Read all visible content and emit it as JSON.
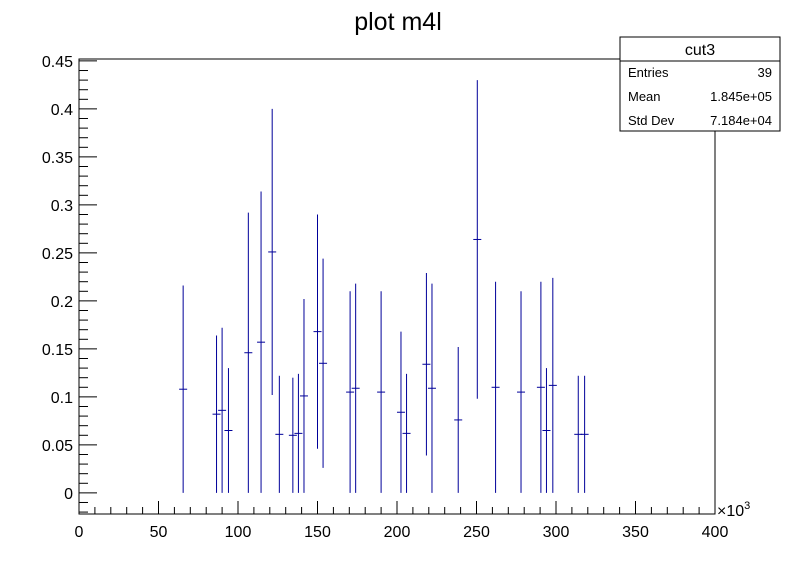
{
  "chart_data": {
    "type": "scatter",
    "title": "plot m4l",
    "xlabel": "",
    "ylabel": "",
    "xlim": [
      0,
      400
    ],
    "ylim": [
      -0.022,
      0.452
    ],
    "x_exponent_label": "×10",
    "x_exponent_power": "3",
    "x_ticks": [
      0,
      50,
      100,
      150,
      200,
      250,
      300,
      350,
      400
    ],
    "x_tick_labels": [
      "0",
      "50",
      "100",
      "150",
      "200",
      "250",
      "300",
      "350",
      "400"
    ],
    "y_ticks": [
      0,
      0.05,
      0.1,
      0.15,
      0.2,
      0.25,
      0.3,
      0.35,
      0.4,
      0.45
    ],
    "y_tick_labels": [
      "0",
      "0.05",
      "0.1",
      "0.15",
      "0.2",
      "0.25",
      "0.3",
      "0.35",
      "0.4",
      "0.45"
    ],
    "grid": false,
    "marker_color": "#000099",
    "points": [
      {
        "x": 65.5,
        "y": 0.108,
        "err": 0.108
      },
      {
        "x": 86.5,
        "y": 0.082,
        "err": 0.082
      },
      {
        "x": 90.0,
        "y": 0.086,
        "err": 0.086
      },
      {
        "x": 94.0,
        "y": 0.065,
        "err": 0.065
      },
      {
        "x": 106.5,
        "y": 0.146,
        "err": 0.146
      },
      {
        "x": 114.5,
        "y": 0.157,
        "err": 0.157
      },
      {
        "x": 121.5,
        "y": 0.251,
        "err": 0.149
      },
      {
        "x": 126.0,
        "y": 0.061,
        "err": 0.061
      },
      {
        "x": 134.5,
        "y": 0.06,
        "err": 0.06
      },
      {
        "x": 138.0,
        "y": 0.062,
        "err": 0.062
      },
      {
        "x": 141.5,
        "y": 0.101,
        "err": 0.101
      },
      {
        "x": 150.0,
        "y": 0.168,
        "err": 0.122
      },
      {
        "x": 153.5,
        "y": 0.135,
        "err": 0.109
      },
      {
        "x": 170.5,
        "y": 0.105,
        "err": 0.105
      },
      {
        "x": 174.0,
        "y": 0.109,
        "err": 0.109
      },
      {
        "x": 190.0,
        "y": 0.105,
        "err": 0.105
      },
      {
        "x": 202.5,
        "y": 0.084,
        "err": 0.084
      },
      {
        "x": 206.0,
        "y": 0.062,
        "err": 0.062
      },
      {
        "x": 218.5,
        "y": 0.134,
        "err": 0.095
      },
      {
        "x": 222.0,
        "y": 0.109,
        "err": 0.109
      },
      {
        "x": 238.5,
        "y": 0.076,
        "err": 0.076
      },
      {
        "x": 250.5,
        "y": 0.264,
        "err": 0.166
      },
      {
        "x": 262.0,
        "y": 0.11,
        "err": 0.11
      },
      {
        "x": 278.0,
        "y": 0.105,
        "err": 0.105
      },
      {
        "x": 290.5,
        "y": 0.11,
        "err": 0.11
      },
      {
        "x": 294.0,
        "y": 0.065,
        "err": 0.065
      },
      {
        "x": 298.0,
        "y": 0.112,
        "err": 0.112
      },
      {
        "x": 314.0,
        "y": 0.061,
        "err": 0.061
      },
      {
        "x": 318.0,
        "y": 0.061,
        "err": 0.061
      }
    ],
    "stats": {
      "name": "cut3",
      "rows": [
        {
          "label": "Entries",
          "value": "39"
        },
        {
          "label": "Mean",
          "value": "1.845e+05"
        },
        {
          "label": "Std Dev",
          "value": "7.184e+04"
        }
      ]
    }
  }
}
